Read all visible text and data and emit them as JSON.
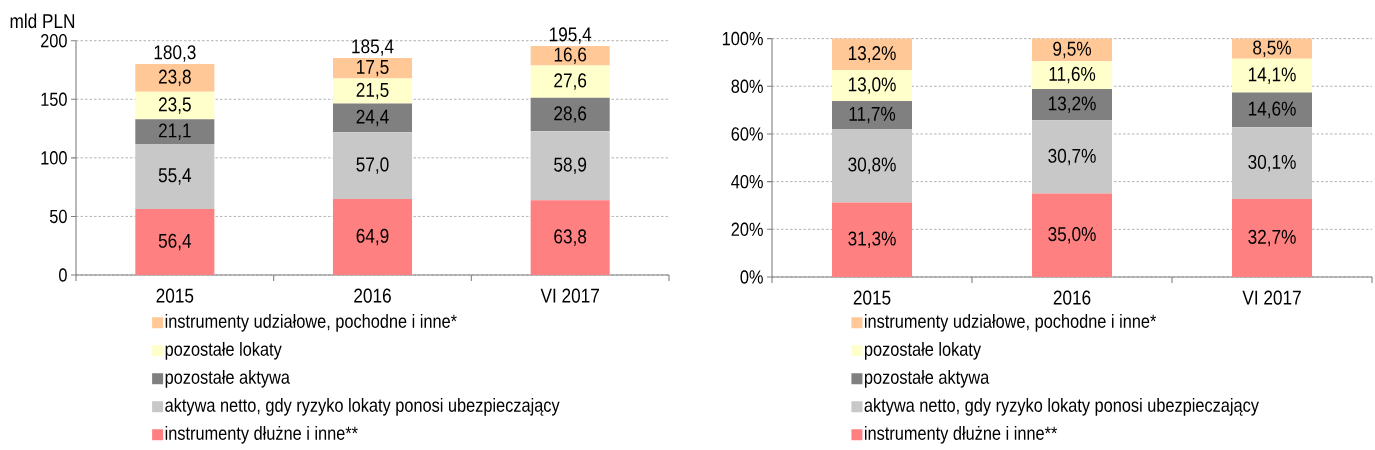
{
  "chart_data": [
    {
      "type": "bar",
      "stacked": true,
      "ylabel": "mld PLN",
      "categories": [
        "2015",
        "2016",
        "VI 2017"
      ],
      "series": [
        {
          "name": "instrumenty dłużne i inne**",
          "color": "#ff8080",
          "values": [
            56.4,
            64.9,
            63.8
          ],
          "value_labels": [
            "56,4",
            "64,9",
            "63,8"
          ]
        },
        {
          "name": "aktywa netto, gdy ryzyko lokaty ponosi ubezpieczający",
          "color": "#c8c8c8",
          "values": [
            55.4,
            57.0,
            58.9
          ],
          "value_labels": [
            "55,4",
            "57,0",
            "58,9"
          ]
        },
        {
          "name": "pozostałe aktywa",
          "color": "#808080",
          "values": [
            21.1,
            24.4,
            28.6
          ],
          "value_labels": [
            "21,1",
            "24,4",
            "28,6"
          ]
        },
        {
          "name": "pozostałe lokaty",
          "color": "#ffffcc",
          "values": [
            23.5,
            21.5,
            27.6
          ],
          "value_labels": [
            "23,5",
            "21,5",
            "27,6"
          ]
        },
        {
          "name": "instrumenty udziałowe, pochodne i inne*",
          "color": "#ffc896",
          "values": [
            23.8,
            17.5,
            16.6
          ],
          "value_labels": [
            "23,8",
            "17,5",
            "16,6"
          ]
        }
      ],
      "totals": [
        "180,3",
        "185,4",
        "195,4"
      ],
      "ylim": [
        0,
        200
      ],
      "yticks": [
        0,
        50,
        100,
        150,
        200
      ],
      "grid": "y",
      "legend": "bottom"
    },
    {
      "type": "bar",
      "stacked": true,
      "categories": [
        "2015",
        "2016",
        "VI 2017"
      ],
      "series": [
        {
          "name": "instrumenty dłużne i inne**",
          "color": "#ff8080",
          "values": [
            31.3,
            35.0,
            32.7
          ],
          "value_labels": [
            "31,3%",
            "35,0%",
            "32,7%"
          ]
        },
        {
          "name": "aktywa netto, gdy ryzyko lokaty ponosi ubezpieczający",
          "color": "#c8c8c8",
          "values": [
            30.8,
            30.7,
            30.1
          ],
          "value_labels": [
            "30,8%",
            "30,7%",
            "30,1%"
          ]
        },
        {
          "name": "pozostałe aktywa",
          "color": "#808080",
          "values": [
            11.7,
            13.2,
            14.6
          ],
          "value_labels": [
            "11,7%",
            "13,2%",
            "14,6%"
          ]
        },
        {
          "name": "pozostałe lokaty",
          "color": "#ffffcc",
          "values": [
            13.0,
            11.6,
            14.1
          ],
          "value_labels": [
            "13,0%",
            "11,6%",
            "14,1%"
          ]
        },
        {
          "name": "instrumenty udziałowe, pochodne i inne*",
          "color": "#ffc896",
          "values": [
            13.2,
            9.5,
            8.5
          ],
          "value_labels": [
            "13,2%",
            "9,5%",
            "8,5%"
          ]
        }
      ],
      "ylim": [
        0,
        100
      ],
      "yticks": [
        {
          "value": 0,
          "label": "0%"
        },
        {
          "value": 20,
          "label": "20%"
        },
        {
          "value": 40,
          "label": "40%"
        },
        {
          "value": 60,
          "label": "60%"
        },
        {
          "value": 80,
          "label": "80%"
        },
        {
          "value": 100,
          "label": "100%"
        }
      ],
      "grid": "y",
      "legend": "bottom"
    }
  ]
}
